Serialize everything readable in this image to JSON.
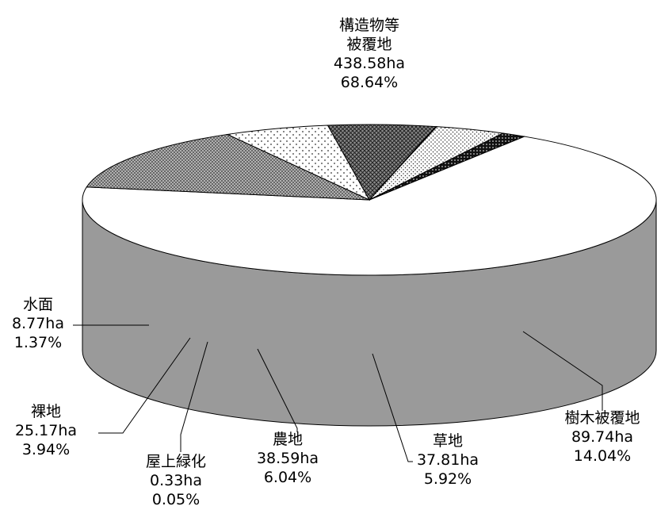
{
  "chart_data": {
    "type": "pie",
    "title": "",
    "slices": [
      {
        "name": "構造物等被覆地",
        "name_lines": [
          "構造物等",
          "被覆地"
        ],
        "area": "438.58ha",
        "percent": "68.64%",
        "value": 68.64,
        "fill": "#ffffff",
        "pattern": "none"
      },
      {
        "name": "樹木被覆地",
        "name_lines": [
          "樹木被覆地"
        ],
        "area": "89.74ha",
        "percent": "14.04%",
        "value": 14.04,
        "fill": "#9a9a9a",
        "pattern": "fine-crosshatch"
      },
      {
        "name": "草地",
        "name_lines": [
          "草地"
        ],
        "area": "37.81ha",
        "percent": "5.92%",
        "value": 5.92,
        "fill": "#ffffff",
        "pattern": "sparse-dots"
      },
      {
        "name": "農地",
        "name_lines": [
          "農地"
        ],
        "area": "38.59ha",
        "percent": "6.04%",
        "value": 6.04,
        "fill": "#777777",
        "pattern": "crosshatch"
      },
      {
        "name": "屋上緑化",
        "name_lines": [
          "屋上緑化"
        ],
        "area": "0.33ha",
        "percent": "0.05%",
        "value": 0.05,
        "fill": "#bdbdbd",
        "pattern": "none"
      },
      {
        "name": "裸地",
        "name_lines": [
          "裸地"
        ],
        "area": "25.17ha",
        "percent": "3.94%",
        "value": 3.94,
        "fill": "#ffffff",
        "pattern": "dense-dots"
      },
      {
        "name": "水面",
        "name_lines": [
          "水面"
        ],
        "area": "8.77ha",
        "percent": "1.37%",
        "value": 1.37,
        "fill": "#111111",
        "pattern": "dark-dots"
      }
    ],
    "style": "3d-pie",
    "legend": "none (leader-line labels)"
  }
}
